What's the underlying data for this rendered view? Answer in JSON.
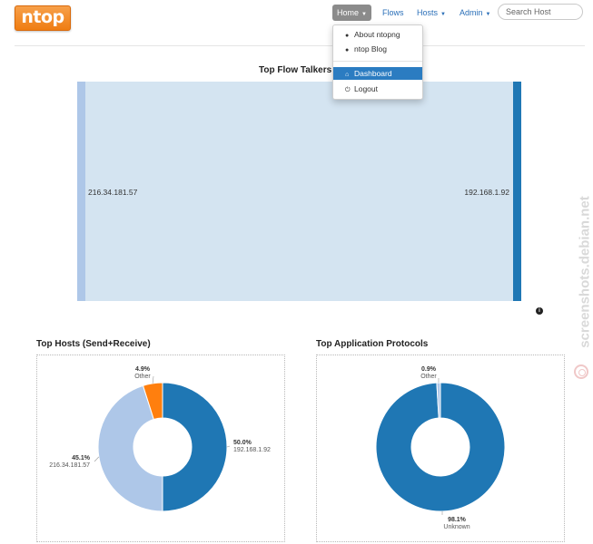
{
  "brand": {
    "logo_text": "ntop"
  },
  "nav": {
    "home_label": "Home",
    "flows_label": "Flows",
    "hosts_label": "Hosts",
    "admin_label": "Admin"
  },
  "search": {
    "placeholder": "Search Host"
  },
  "home_menu": {
    "about": "About ntopng",
    "blog": "ntop Blog",
    "dashboard": "Dashboard",
    "logout": "Logout"
  },
  "flow_talkers": {
    "title": "Top Flow Talkers",
    "source": "216.34.181.57",
    "destination": "192.168.1.92",
    "colors": {
      "source_bar": "#aec7e8",
      "dest_bar": "#1f77b4",
      "link": "#d4e4f1"
    }
  },
  "chart_data": [
    {
      "type": "pie",
      "title": "Top Hosts (Send+Receive)",
      "slices": [
        {
          "label": "192.168.1.92",
          "percent": "50.0%",
          "value": 50.0,
          "color": "#1f77b4"
        },
        {
          "label": "216.34.181.57",
          "percent": "45.1%",
          "value": 45.1,
          "color": "#aec7e8"
        },
        {
          "label": "Other",
          "percent": "4.9%",
          "value": 4.9,
          "color": "#ff7f0e"
        }
      ]
    },
    {
      "type": "pie",
      "title": "Top Application Protocols",
      "slices": [
        {
          "label": "Unknown",
          "percent": "98.1%",
          "value": 98.1,
          "color": "#1f77b4"
        },
        {
          "label": "Other",
          "percent": "0.9%",
          "value": 0.9,
          "color": "#aec7e8"
        }
      ]
    }
  ],
  "watermark": "screenshots.debian.net"
}
